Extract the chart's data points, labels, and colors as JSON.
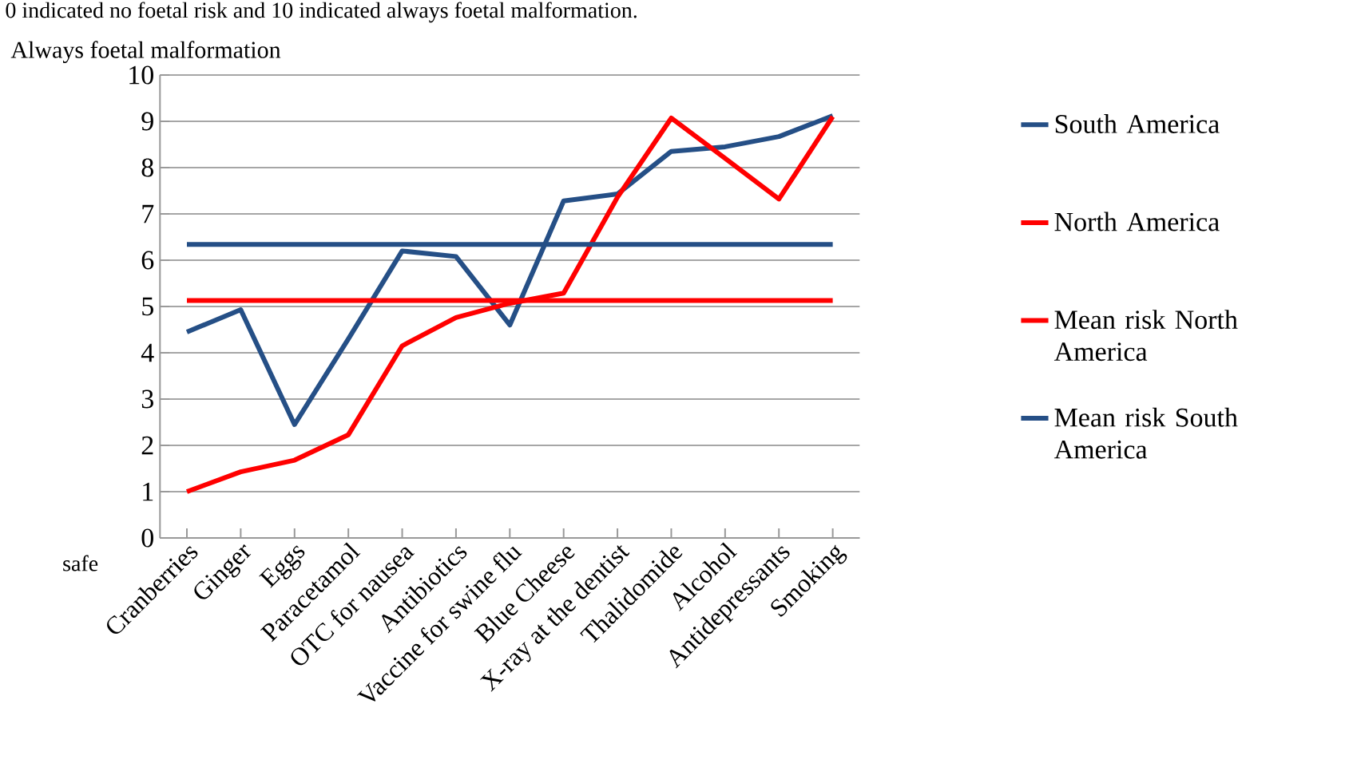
{
  "chart_data": {
    "type": "line",
    "ylabel": "Always foetal malformation",
    "annotations": [
      "0 indicated no foetal risk and 10 indicated always foetal malformation.",
      "safe"
    ],
    "categories": [
      "Cranberries",
      "Ginger",
      "Eggs",
      "Paracetamol",
      "OTC for nausea",
      "Antibiotics",
      "Vaccine for swine flu",
      "Blue Cheese",
      "X-ray at the dentist",
      "Thalidomide",
      "Alcohol",
      "Antidepressants",
      "Smoking"
    ],
    "series": [
      {
        "name": "South America",
        "color": "#254f86",
        "values": [
          4.45,
          4.93,
          2.45,
          4.3,
          6.2,
          6.08,
          4.6,
          7.28,
          7.43,
          8.35,
          8.45,
          8.67,
          9.12
        ]
      },
      {
        "name": "North America",
        "color": "#ff0000",
        "values": [
          1.0,
          1.43,
          1.68,
          2.23,
          4.15,
          4.76,
          5.07,
          5.29,
          7.36,
          9.07,
          8.2,
          7.32,
          9.1
        ]
      },
      {
        "name": "Mean risk North America",
        "color": "#ff0000",
        "values": [
          5.13,
          5.13,
          5.13,
          5.13,
          5.13,
          5.13,
          5.13,
          5.13,
          5.13,
          5.13,
          5.13,
          5.13,
          5.13
        ]
      },
      {
        "name": "Mean risk South America",
        "color": "#254f86",
        "values": [
          6.34,
          6.34,
          6.34,
          6.34,
          6.34,
          6.34,
          6.34,
          6.34,
          6.34,
          6.34,
          6.34,
          6.34,
          6.34
        ]
      }
    ],
    "ylim": [
      0,
      10
    ],
    "yticks": [
      0,
      1,
      2,
      3,
      4,
      5,
      6,
      7,
      8,
      9,
      10
    ],
    "grid": "y",
    "legend": "right",
    "marker": "none",
    "line_style": "solid"
  }
}
